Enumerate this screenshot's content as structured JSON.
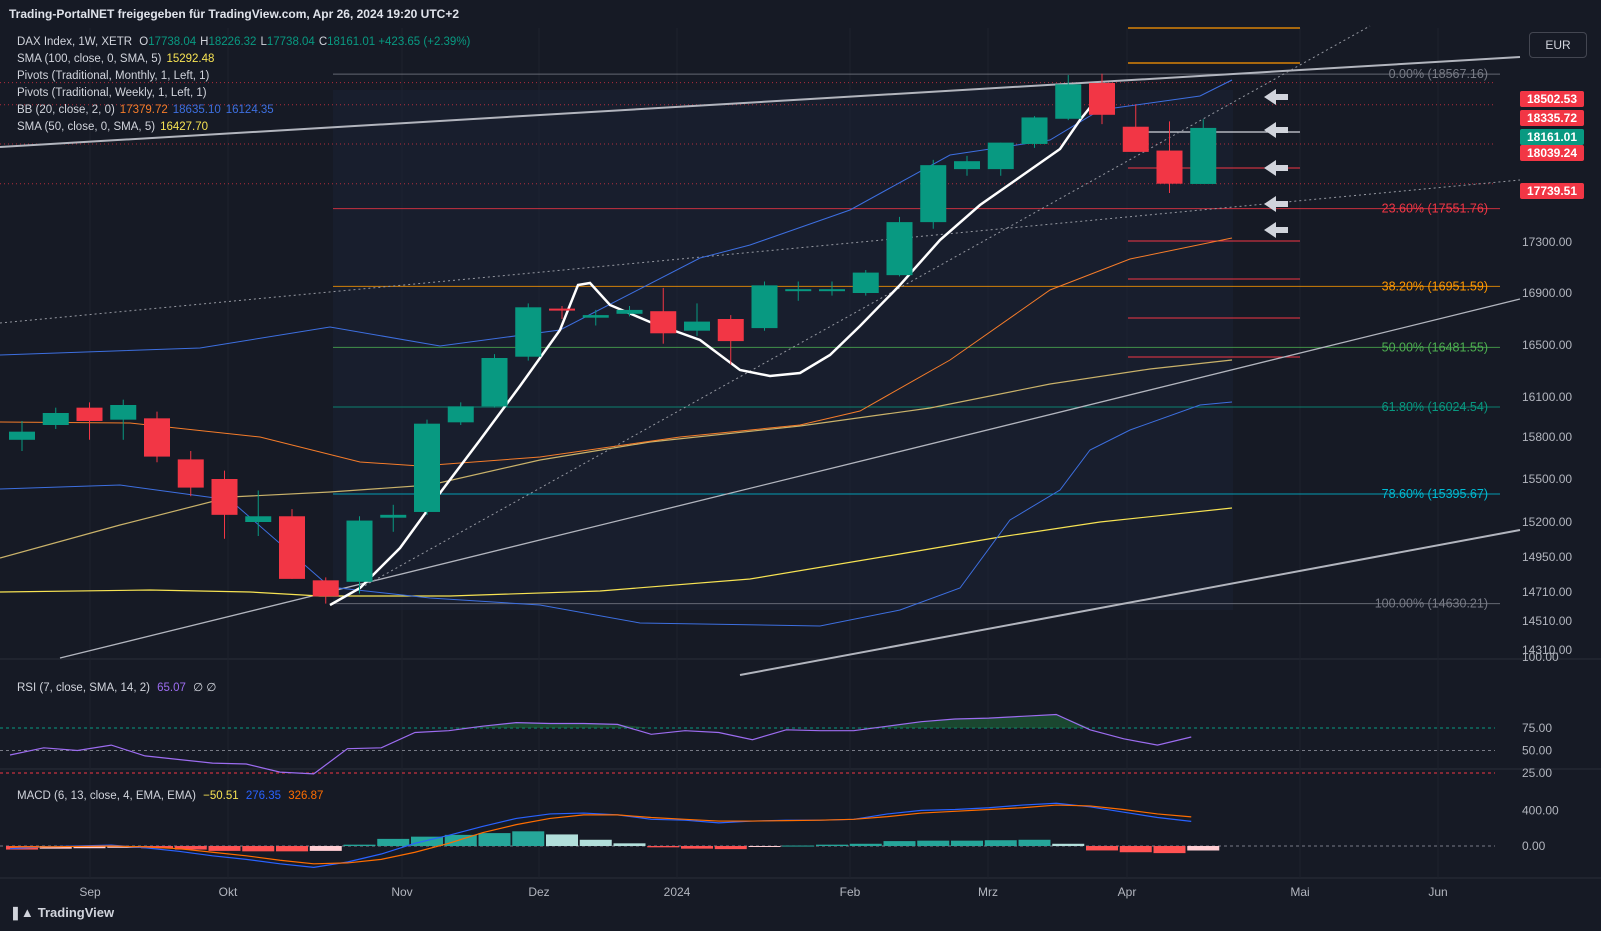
{
  "header": {
    "title": "Trading-PortalNET freigegeben für TradingView.com, Apr 26, 2024 19:20 UTC+2",
    "currency": "EUR",
    "footer_brand": "TradingView"
  },
  "legend": {
    "symbol": "DAX Index, 1W, XETR",
    "ohlc": [
      {
        "k": "O",
        "v": "17738.04"
      },
      {
        "k": "H",
        "v": "18226.32"
      },
      {
        "k": "L",
        "v": "17738.04"
      },
      {
        "k": "C",
        "v": "18161.01"
      }
    ],
    "change": "+423.65 (+2.39%)",
    "indicators": [
      {
        "name": "SMA (100, close, 0, SMA, 5)",
        "values": [
          "15292.48"
        ],
        "colors": [
          "#f7e353"
        ]
      },
      {
        "name": "Pivots (Traditional, Monthly, 1, Left, 1)",
        "values": [],
        "colors": []
      },
      {
        "name": "Pivots (Traditional, Weekly, 1, Left, 1)",
        "values": [],
        "colors": []
      },
      {
        "name": "BB (20, close, 2, 0)",
        "values": [
          "17379.72",
          "18635.10",
          "16124.35"
        ],
        "colors": [
          "#f57c2a",
          "#3d6fe0",
          "#3d6fe0"
        ]
      },
      {
        "name": "SMA (50, close, 0, SMA, 5)",
        "values": [
          "16427.70"
        ],
        "colors": [
          "#f7e353"
        ]
      }
    ],
    "rsi": {
      "name": "RSI (7, close, SMA, 14, 2)",
      "value": "65.07",
      "extra": "∅ ∅"
    },
    "macd": {
      "name": "MACD (6, 13, close, 4, EMA, EMA)",
      "values": [
        "−50.51",
        "276.35",
        "326.87"
      ],
      "colors": [
        "#f23645",
        "#2962ff",
        "#ff6d00"
      ]
    }
  },
  "chart_data": {
    "type": "candlestick",
    "x_labels": [
      "Sep",
      "Okt",
      "Nov",
      "Dez",
      "2024",
      "Feb",
      "Mrz",
      "Apr",
      "Mai",
      "Jun"
    ],
    "y_ticks": [
      "17300.00",
      "16900.00",
      "16500.00",
      "16100.00",
      "15800.00",
      "15500.00",
      "15200.00",
      "14950.00",
      "14710.00",
      "14510.00",
      "14310.00"
    ],
    "y_top_partial": "100.00",
    "candles": [
      {
        "o": 15780,
        "h": 15920,
        "l": 15700,
        "c": 15840
      },
      {
        "o": 15890,
        "h": 16020,
        "l": 15860,
        "c": 15980
      },
      {
        "o": 16020,
        "h": 16060,
        "l": 15780,
        "c": 15920
      },
      {
        "o": 15930,
        "h": 16080,
        "l": 15780,
        "c": 16040
      },
      {
        "o": 15940,
        "h": 15990,
        "l": 15620,
        "c": 15660
      },
      {
        "o": 15640,
        "h": 15700,
        "l": 15380,
        "c": 15440
      },
      {
        "o": 15500,
        "h": 15560,
        "l": 15080,
        "c": 15250
      },
      {
        "o": 15200,
        "h": 15420,
        "l": 15100,
        "c": 15240
      },
      {
        "o": 15240,
        "h": 15290,
        "l": 14800,
        "c": 14800
      },
      {
        "o": 14790,
        "h": 14810,
        "l": 14630,
        "c": 14680
      },
      {
        "o": 14780,
        "h": 15240,
        "l": 14700,
        "c": 15210
      },
      {
        "o": 15230,
        "h": 15320,
        "l": 15130,
        "c": 15250
      },
      {
        "o": 15270,
        "h": 15930,
        "l": 15250,
        "c": 15900
      },
      {
        "o": 15910,
        "h": 16060,
        "l": 15890,
        "c": 16030
      },
      {
        "o": 16030,
        "h": 16430,
        "l": 16020,
        "c": 16400
      },
      {
        "o": 16410,
        "h": 16820,
        "l": 16380,
        "c": 16790
      },
      {
        "o": 16780,
        "h": 16800,
        "l": 16700,
        "c": 16770
      },
      {
        "o": 16710,
        "h": 16770,
        "l": 16650,
        "c": 16730
      },
      {
        "o": 16740,
        "h": 16800,
        "l": 16720,
        "c": 16770
      },
      {
        "o": 16760,
        "h": 16940,
        "l": 16510,
        "c": 16590
      },
      {
        "o": 16610,
        "h": 16820,
        "l": 16570,
        "c": 16680
      },
      {
        "o": 16700,
        "h": 16730,
        "l": 16350,
        "c": 16530
      },
      {
        "o": 16630,
        "h": 16990,
        "l": 16610,
        "c": 16960
      },
      {
        "o": 16920,
        "h": 16990,
        "l": 16840,
        "c": 16930
      },
      {
        "o": 16920,
        "h": 16990,
        "l": 16880,
        "c": 16930
      },
      {
        "o": 16900,
        "h": 17080,
        "l": 16880,
        "c": 17060
      },
      {
        "o": 17040,
        "h": 17490,
        "l": 17030,
        "c": 17450
      },
      {
        "o": 17450,
        "h": 17920,
        "l": 17400,
        "c": 17880
      },
      {
        "o": 17850,
        "h": 17950,
        "l": 17800,
        "c": 17910
      },
      {
        "o": 17850,
        "h": 18050,
        "l": 17800,
        "c": 18050
      },
      {
        "o": 18040,
        "h": 18250,
        "l": 18010,
        "c": 18240
      },
      {
        "o": 18230,
        "h": 18560,
        "l": 18220,
        "c": 18490
      },
      {
        "o": 18500,
        "h": 18570,
        "l": 18190,
        "c": 18260
      },
      {
        "o": 18170,
        "h": 18340,
        "l": 17980,
        "c": 17980
      },
      {
        "o": 17990,
        "h": 18210,
        "l": 17670,
        "c": 17740
      },
      {
        "o": 17738.04,
        "h": 18226.32,
        "l": 17738.04,
        "c": 18161.01
      }
    ],
    "price_tags": [
      {
        "value": "18502.53",
        "color": "#f23645"
      },
      {
        "value": "18335.72",
        "color": "#f23645"
      },
      {
        "value": "18161.01",
        "color": "#089981"
      },
      {
        "value": "18039.24",
        "color": "#f23645"
      },
      {
        "value": "17739.51",
        "color": "#f23645"
      }
    ],
    "fib_levels": [
      {
        "label": "0.00% (18567.16)",
        "price": 18567.16,
        "color": "#787b86"
      },
      {
        "label": "23.60% (17551.76)",
        "price": 17551.76,
        "color": "#f23645"
      },
      {
        "label": "38.20% (16951.59)",
        "price": 16951.59,
        "color": "#ff9800"
      },
      {
        "label": "50.00% (16481.55)",
        "price": 16481.55,
        "color": "#4caf50"
      },
      {
        "label": "61.80% (16024.54)",
        "price": 16024.54,
        "color": "#089981"
      },
      {
        "label": "78.60% (15395.67)",
        "price": 15395.67,
        "color": "#00bcd4"
      },
      {
        "label": "100.00% (14630.21)",
        "price": 14630.21,
        "color": "#787b86"
      }
    ],
    "rsi": {
      "y_ticks": [
        "75.00",
        "50.00",
        "25.00"
      ],
      "values": [
        45,
        53,
        50,
        56,
        44,
        40,
        36,
        35,
        26,
        24,
        52,
        53,
        70,
        72,
        77,
        81,
        80,
        80,
        79,
        68,
        72,
        70,
        62,
        73,
        72,
        72,
        77,
        82,
        85,
        86,
        88,
        90,
        73,
        63,
        56,
        65
      ]
    },
    "macd": {
      "y_ticks": [
        "400.00",
        "0.00"
      ],
      "macd": [
        -30,
        -10,
        0,
        10,
        -20,
        -60,
        -110,
        -150,
        -200,
        -240,
        -180,
        -90,
        30,
        120,
        220,
        310,
        360,
        370,
        350,
        300,
        290,
        260,
        280,
        290,
        290,
        300,
        360,
        400,
        410,
        430,
        460,
        480,
        440,
        380,
        320,
        276.35
      ],
      "signal": [
        -10,
        -10,
        -5,
        0,
        -10,
        -30,
        -70,
        -110,
        -160,
        -200,
        -190,
        -150,
        -70,
        30,
        150,
        240,
        310,
        350,
        350,
        320,
        300,
        280,
        280,
        285,
        290,
        300,
        330,
        370,
        390,
        410,
        430,
        460,
        450,
        410,
        360,
        326.87
      ],
      "hist": [
        -40,
        -30,
        -25,
        -20,
        -25,
        -40,
        -55,
        -60,
        -60,
        -55,
        15,
        80,
        105,
        125,
        145,
        165,
        130,
        70,
        30,
        -15,
        -30,
        -35,
        -10,
        5,
        15,
        25,
        55,
        60,
        60,
        65,
        70,
        25,
        -50,
        -70,
        -80,
        -50.51
      ]
    }
  }
}
